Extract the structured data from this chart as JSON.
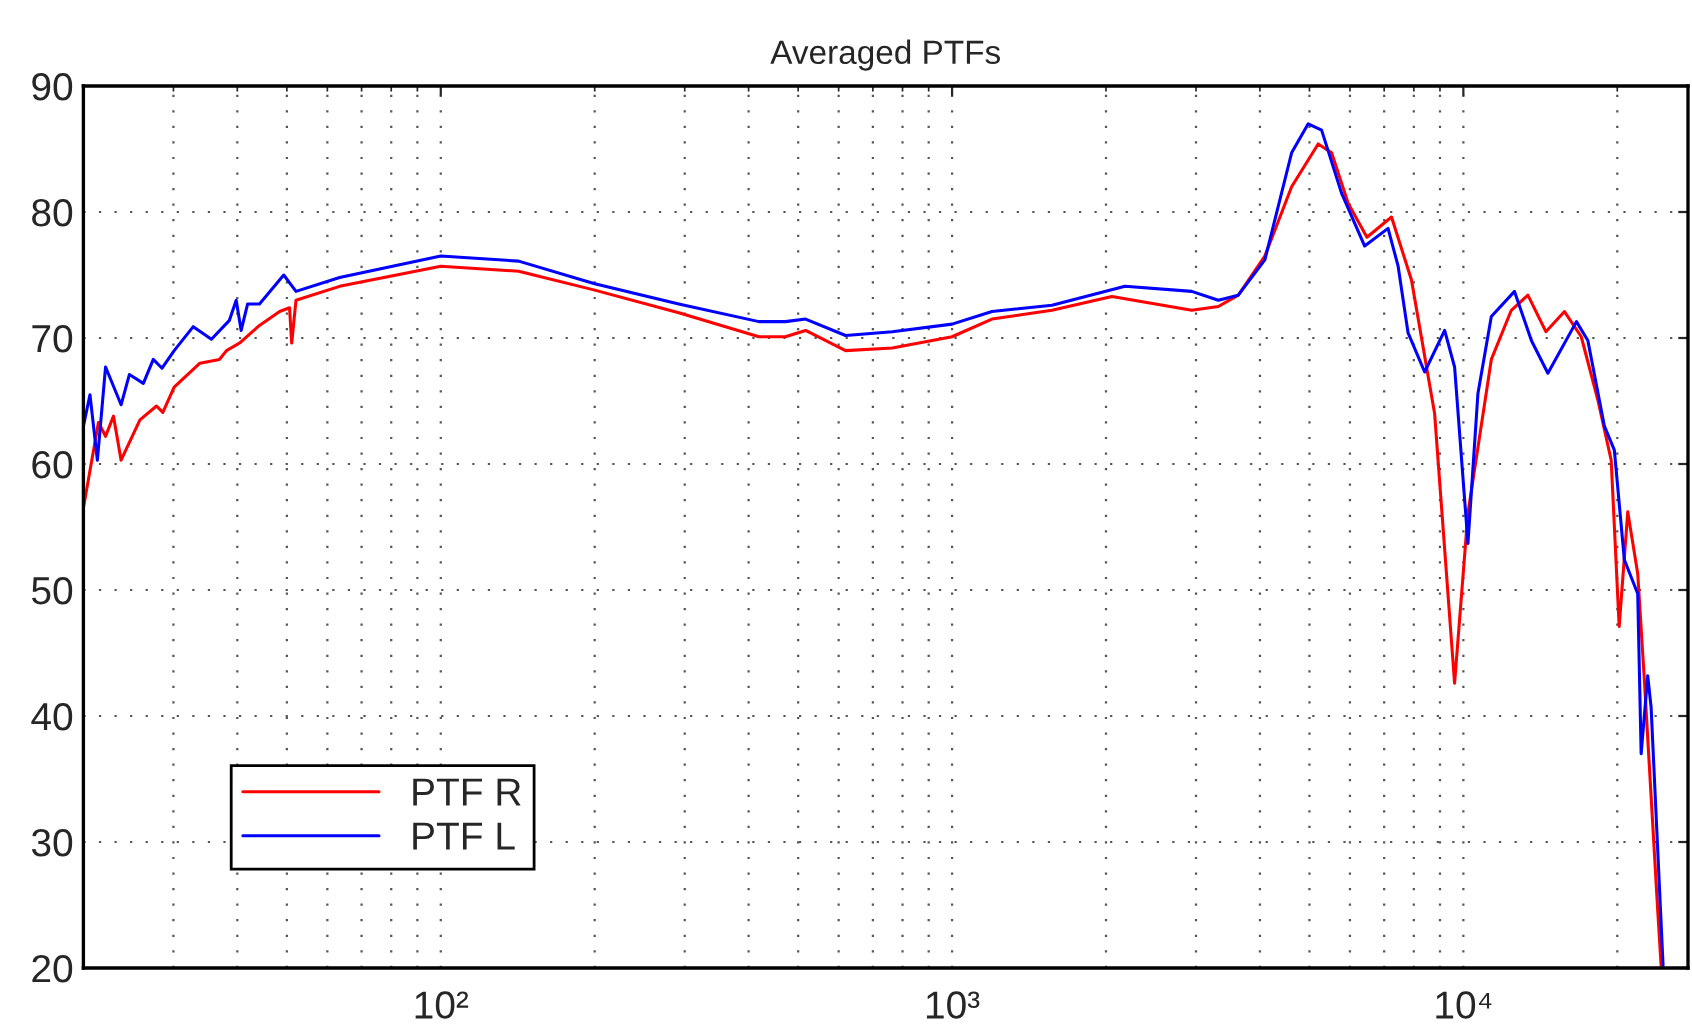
{
  "chart_data": {
    "type": "line",
    "title": "Averaged PTFs",
    "log": "x",
    "grid": true,
    "legend": "bottom left",
    "xlim": [
      20,
      27500
    ],
    "xticks": [
      {
        "value": 100,
        "label": "10²"
      },
      {
        "value": 1000,
        "label": "10³"
      },
      {
        "value": 10000,
        "label": "10⁴"
      }
    ],
    "ylim": [
      20,
      90
    ],
    "yticks": [
      20,
      30,
      40,
      50,
      60,
      70,
      80,
      90
    ],
    "series": [
      {
        "name": "PTF R",
        "color": "#ff0000",
        "x": [
          20,
          21.4,
          22.1,
          22.9,
          23.7,
          25.8,
          27.8,
          28.6,
          30.1,
          33.8,
          36.9,
          38.1,
          40.4,
          44.2,
          48.4,
          50.6,
          51.1,
          52.1,
          63.4,
          100,
          142,
          200,
          292,
          419,
          472,
          517,
          619,
          764,
          1000,
          1197,
          1568,
          2054,
          2943,
          3317,
          3629,
          4090,
          4614,
          5200,
          5524,
          5951,
          6477,
          7235,
          7916,
          8785,
          9612,
          10208,
          11342,
          12409,
          13372,
          14500,
          15767,
          17005,
          18320,
          19458,
          20170,
          20966,
          21928,
          22589,
          23992,
          24360
        ],
        "values": [
          56.5,
          63.3,
          62.2,
          63.8,
          60.3,
          63.5,
          64.6,
          64.1,
          66.1,
          68.0,
          68.3,
          69.0,
          69.6,
          71.0,
          72.1,
          72.4,
          69.6,
          73.0,
          74.1,
          75.7,
          75.3,
          73.8,
          72.0,
          70.1,
          70.1,
          70.6,
          69.0,
          69.2,
          70.1,
          71.5,
          72.2,
          73.3,
          72.2,
          72.5,
          73.4,
          76.5,
          82.0,
          85.4,
          84.7,
          80.7,
          78.0,
          79.6,
          74.6,
          64.0,
          42.6,
          56.1,
          68.3,
          72.2,
          73.4,
          70.5,
          72.1,
          70.1,
          65.1,
          60.3,
          47.1,
          56.2,
          51.3,
          42.9,
          24.6,
          20.2
        ]
      },
      {
        "name": "PTF L",
        "color": "#0000ff",
        "x": [
          20,
          20.6,
          21.3,
          22.1,
          23.7,
          24.6,
          26.2,
          27.4,
          28.5,
          30.1,
          32.8,
          35.6,
          38.6,
          39.8,
          40.7,
          41.9,
          44.2,
          49.3,
          52.1,
          63.4,
          100,
          142,
          200,
          292,
          419,
          472,
          517,
          619,
          764,
          1000,
          1197,
          1568,
          2179,
          2943,
          3317,
          3629,
          4090,
          4614,
          4972,
          5281,
          5777,
          6412,
          7123,
          7454,
          7796,
          8400,
          9191,
          9612,
          10208,
          10678,
          11342,
          12589,
          13584,
          14632,
          16640,
          17517,
          18873,
          19737,
          20646,
          21928,
          22269,
          22936,
          23290,
          24580
        ],
        "values": [
          63.0,
          65.5,
          60.3,
          67.7,
          64.7,
          67.1,
          66.4,
          68.3,
          67.6,
          69.0,
          70.9,
          69.9,
          71.4,
          73.0,
          70.6,
          72.7,
          72.7,
          75.0,
          73.7,
          74.8,
          76.5,
          76.1,
          74.3,
          72.7,
          71.3,
          71.3,
          71.5,
          70.2,
          70.5,
          71.1,
          72.1,
          72.6,
          74.1,
          73.7,
          73.0,
          73.4,
          76.2,
          84.7,
          87.0,
          86.5,
          81.5,
          77.3,
          78.7,
          75.7,
          70.4,
          67.3,
          70.6,
          67.7,
          53.7,
          65.6,
          71.7,
          73.7,
          69.8,
          67.2,
          71.3,
          69.8,
          63.0,
          61.1,
          52.4,
          49.7,
          37.0,
          43.2,
          40.7,
          20.2
        ]
      }
    ]
  }
}
